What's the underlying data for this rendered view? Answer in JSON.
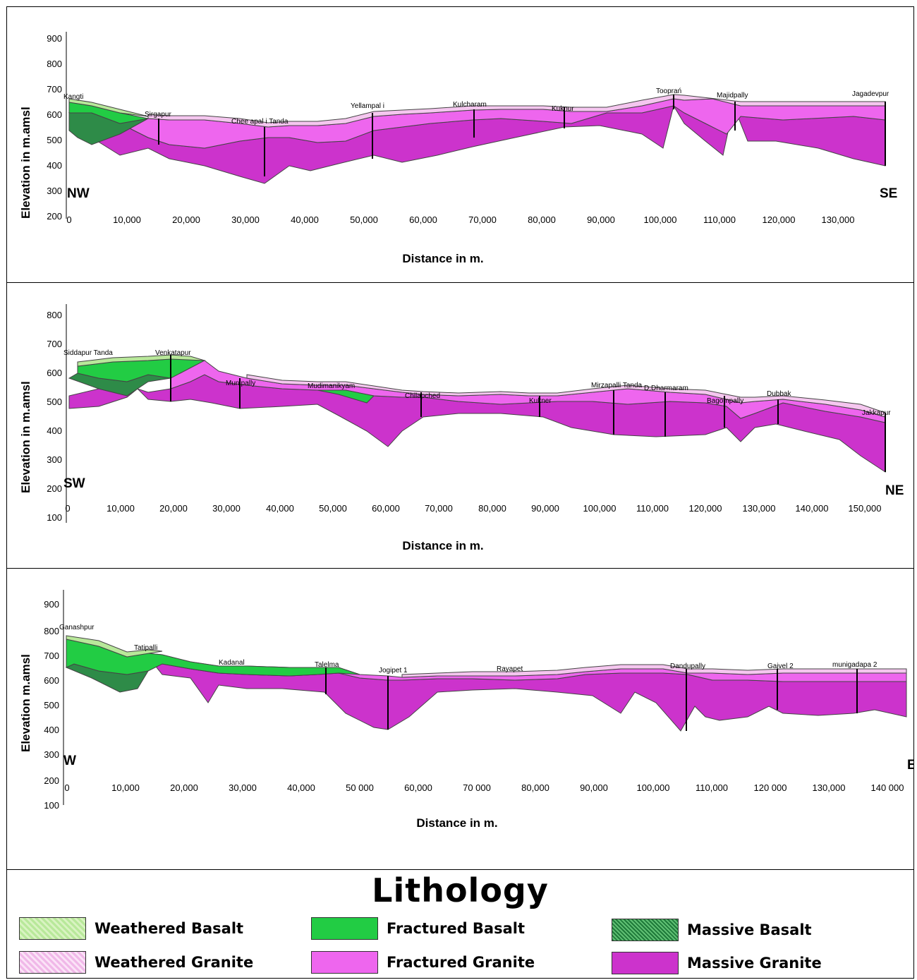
{
  "panels": [
    {
      "ylabel": "Elevation in m.amsl",
      "xlabel": "Distance in m.",
      "y_ticks": [
        "900",
        "800",
        "700",
        "600",
        "500",
        "400",
        "300",
        "200"
      ],
      "x_ticks": [
        "0",
        "10,000",
        "20,000",
        "30,000",
        "40,000",
        "50,000",
        "60,000",
        "70,000",
        "80,000",
        "90,000",
        "100,000",
        "110,000",
        "120,000",
        "130,000"
      ],
      "dir_left": "NW",
      "dir_right": "SE",
      "locations": [
        "Kangti",
        "Sirgapur",
        "Chee apal i Tanda",
        "Yellampal i",
        "Kulcharam",
        "Kuknur",
        "Tooprań",
        "Majidpally",
        "Jagadevpur"
      ]
    },
    {
      "ylabel": "Elevation in m.amsl",
      "xlabel": "Distance in m.",
      "y_ticks": [
        "800",
        "700",
        "600",
        "500",
        "400",
        "300",
        "200",
        "100"
      ],
      "x_ticks": [
        "0",
        "10,000",
        "20,000",
        "30,000",
        "40,000",
        "50,000",
        "60,000",
        "70,000",
        "80,000",
        "90,000",
        "100,000",
        "110,000",
        "120,000",
        "130,000",
        "140,000",
        "150,000"
      ],
      "dir_left": "SW",
      "dir_right": "NE",
      "locations": [
        "Siddapur Tanda",
        "Venkatapur",
        "Munipally",
        "Mudimanikyam",
        "Chilapched",
        "Kukner",
        "Mirzapalli Tanda",
        "D.Dharmaram",
        "Bagompally",
        "Dubbak",
        "Jakkapur"
      ]
    },
    {
      "ylabel": "Elevation m.amsl",
      "xlabel": "Distance in m.",
      "y_ticks": [
        "900",
        "800",
        "700",
        "600",
        "500",
        "400",
        "300",
        "200",
        "100"
      ],
      "x_ticks": [
        "0",
        "10,000",
        "20,000",
        "30,000",
        "40,000",
        "50 000",
        "60,000",
        "70 000",
        "80,000",
        "90,000",
        "100,000",
        "110,000",
        "120 000",
        "130,000",
        "140 000"
      ],
      "dir_left": "W",
      "dir_right": "E",
      "locations": [
        "Ganashpur",
        "Tatipalli",
        "Kadanal",
        "Talelma",
        "Jogipet 1",
        "Rayapet",
        "Dandupally",
        "Gajvel 2",
        "munigadapa 2"
      ]
    }
  ],
  "legend": {
    "title": "Lithology",
    "items": [
      {
        "label": "Weathered Basalt",
        "color": "#b8e89a"
      },
      {
        "label": "Fractured Basalt",
        "color": "#22cc44"
      },
      {
        "label": "Massive Basalt",
        "color": "#1f7a3a"
      },
      {
        "label": "Weathered Granite",
        "color": "#f0b8e8"
      },
      {
        "label": "Fractured Granite",
        "color": "#ee66ee"
      },
      {
        "label": "Massive Granite",
        "color": "#cc33cc"
      }
    ]
  }
}
